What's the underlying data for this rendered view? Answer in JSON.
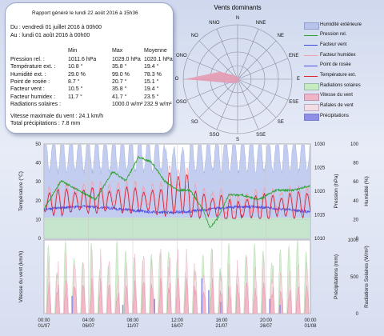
{
  "report": {
    "title": "Rapport généré le lundi 22 août 2016 à 15h36",
    "from": "Du : vendredi 01 juillet 2016 à 00h00",
    "to": "Au : lundi 01 août 2016 à 00h00",
    "col_min": "Min",
    "col_max": "Max",
    "col_avg": "Moyenne",
    "rows": [
      {
        "label": "Pression rel. :",
        "min": "1011.6 hPa",
        "max": "1029.0 hPa",
        "avg": "1020.1 hPa"
      },
      {
        "label": "Température ext. :",
        "min": "10.8 °",
        "max": "35.8 °",
        "avg": "19.4 °"
      },
      {
        "label": "Humidité ext. :",
        "min": "29.0 %",
        "max": "99.0 %",
        "avg": "78.3 %"
      },
      {
        "label": "Point de rosée :",
        "min": "8.7 °",
        "max": "20.7 °",
        "avg": "15.1 °"
      },
      {
        "label": "Facteur vent :",
        "min": "10.5 °",
        "max": "35.8 °",
        "avg": "19.4 °"
      },
      {
        "label": "Facteur humidex :",
        "min": "11.7 °",
        "max": "41.7 °",
        "avg": "23.5 °"
      },
      {
        "label": "Radiations solaires :",
        "min": "",
        "max": "1000.0 w/m²",
        "avg": "232.9 w/m²"
      }
    ],
    "wind_max": "Vitesse maximale du vent : 24.1 km/h",
    "precip_total": "Total précipitations : 7.8 mm"
  },
  "wind_rose": {
    "title": "Vents dominants",
    "directions": [
      "N",
      "NNE",
      "NE",
      "ENE",
      "E",
      "ESE",
      "SE",
      "SSE",
      "S",
      "SSO",
      "SO",
      "OSO",
      "O",
      "ONO",
      "NO",
      "NNO"
    ],
    "speed_fill_color": "#e89aae",
    "gust_fill_color": "#c8a8d8",
    "speed_values": [
      0.03,
      0.02,
      0.02,
      0.02,
      0.02,
      0.02,
      0.02,
      0.03,
      0.05,
      0.06,
      0.08,
      0.15,
      0.95,
      0.35,
      0.08,
      0.04
    ],
    "gust_values": [
      0.04,
      0.03,
      0.03,
      0.03,
      0.03,
      0.03,
      0.03,
      0.04,
      0.06,
      0.08,
      0.1,
      0.18,
      0.8,
      0.3,
      0.1,
      0.05
    ]
  },
  "legend": [
    {
      "label": "Humidité extérieure",
      "color": "#b8c4ec",
      "kind": "fill"
    },
    {
      "label": "Pression rel.",
      "color": "#27a22a",
      "kind": "line"
    },
    {
      "label": "Facteur vent",
      "color": "#3a4ad8",
      "kind": "line"
    },
    {
      "label": "Facteur humidex",
      "color": "#f0a0a8",
      "kind": "line"
    },
    {
      "label": "Point de rosée",
      "color": "#4d4de8",
      "kind": "line"
    },
    {
      "label": "Température ext.",
      "color": "#e2242e",
      "kind": "line"
    },
    {
      "label": "Radiations solaires",
      "color": "#c6ecc0",
      "kind": "fill"
    },
    {
      "label": "Vitesse du vent",
      "color": "#f0b4c4",
      "kind": "fill"
    },
    {
      "label": "Rafales de vent",
      "color": "#f4dce4",
      "kind": "fill"
    },
    {
      "label": "Précipitations",
      "color": "#8f8fe8",
      "kind": "fill"
    }
  ],
  "chart_data": [
    {
      "type": "line",
      "ylabel_left": "Température (°C)",
      "ylabel_right1": "Pression (hPa)",
      "ylabel_right2": "Humidité (%)",
      "y_left_ticks": [
        "0",
        "10",
        "20",
        "30",
        "40",
        "50"
      ],
      "y_right1_ticks": [
        "1010",
        "1015",
        "1020",
        "1025",
        "1030"
      ],
      "y_right2_ticks": [
        "0",
        "20",
        "40",
        "60",
        "80",
        "100"
      ],
      "ylim_left": [
        0,
        50
      ],
      "ylim_pressure": [
        1010,
        1030
      ],
      "ylim_humidity": [
        0,
        100
      ],
      "x_days": [
        0,
        31
      ],
      "summary": {
        "temperature_min": 10.8,
        "temperature_max": 35.8,
        "pressure_min": 1011.6,
        "pressure_max": 1029.0,
        "humidity_min": 29.0,
        "humidity_max": 99.0,
        "dewpoint_min": 8.7,
        "dewpoint_max": 20.7
      }
    },
    {
      "type": "area",
      "ylabel_left": "Vitesse du vent (km/h)",
      "ylabel_right1": "Précipitations (mm)",
      "ylabel_right2": "Radiations Solaires (W/m²)",
      "y_right2_ticks": [
        "0",
        "500",
        "1000"
      ],
      "ylim_wind": [
        0,
        25
      ],
      "ylim_solar": [
        0,
        1000
      ],
      "x_tick_labels": [
        "00:00\n01/07",
        "04:00\n06/07",
        "08:00\n11/07",
        "12:00\n16/07",
        "16:00\n21/07",
        "20:00\n26/07",
        "00:00\n01/08"
      ],
      "x_tick_days": [
        0,
        5.167,
        10.333,
        15.5,
        20.667,
        25.833,
        31
      ],
      "summary": {
        "wind_max": 24.1,
        "solar_max": 1000.0,
        "precip_total": 7.8
      }
    }
  ]
}
